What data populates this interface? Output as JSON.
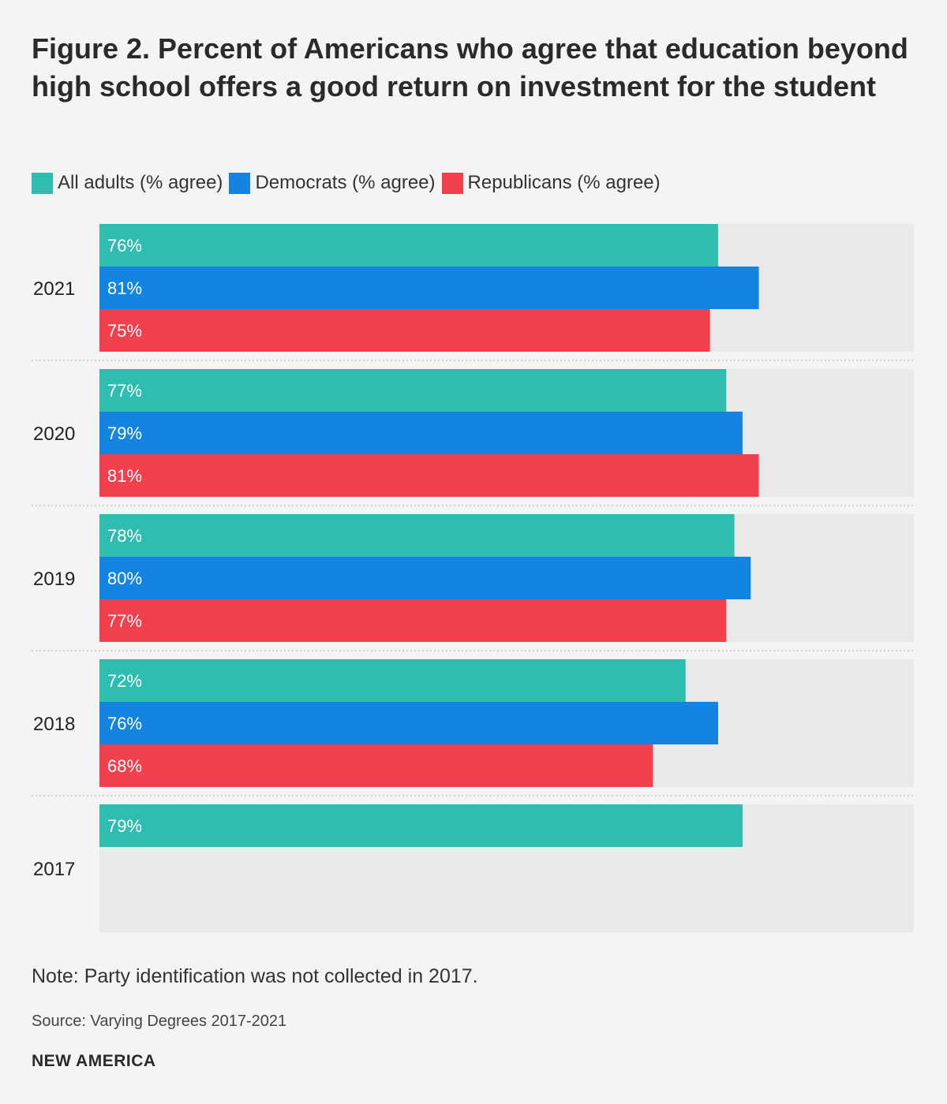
{
  "title": "Figure 2. Percent of Americans who agree that education beyond high school offers a good return on investment for the student",
  "legend": [
    {
      "label": "All adults (% agree)",
      "color": "#2fbdb2"
    },
    {
      "label": "Democrats (% agree)",
      "color": "#1385e0"
    },
    {
      "label": "Republicans (% agree)",
      "color": "#f2404c"
    }
  ],
  "chart_data": {
    "type": "bar",
    "orientation": "horizontal",
    "xlim": [
      0,
      100
    ],
    "value_suffix": "%",
    "background_color": "#e9e9e9",
    "categories": [
      "2021",
      "2020",
      "2019",
      "2018",
      "2017"
    ],
    "series": [
      {
        "name": "All adults (% agree)",
        "color": "#2fbdb2",
        "values": [
          76,
          77,
          78,
          72,
          79
        ]
      },
      {
        "name": "Democrats (% agree)",
        "color": "#1385e0",
        "values": [
          81,
          79,
          80,
          76,
          null
        ]
      },
      {
        "name": "Republicans (% agree)",
        "color": "#f2404c",
        "values": [
          75,
          81,
          77,
          68,
          null
        ]
      }
    ]
  },
  "note": "Note: Party identification was not collected in 2017.",
  "source": "Source: Varying Degrees 2017-2021",
  "brand": "NEW AMERICA"
}
